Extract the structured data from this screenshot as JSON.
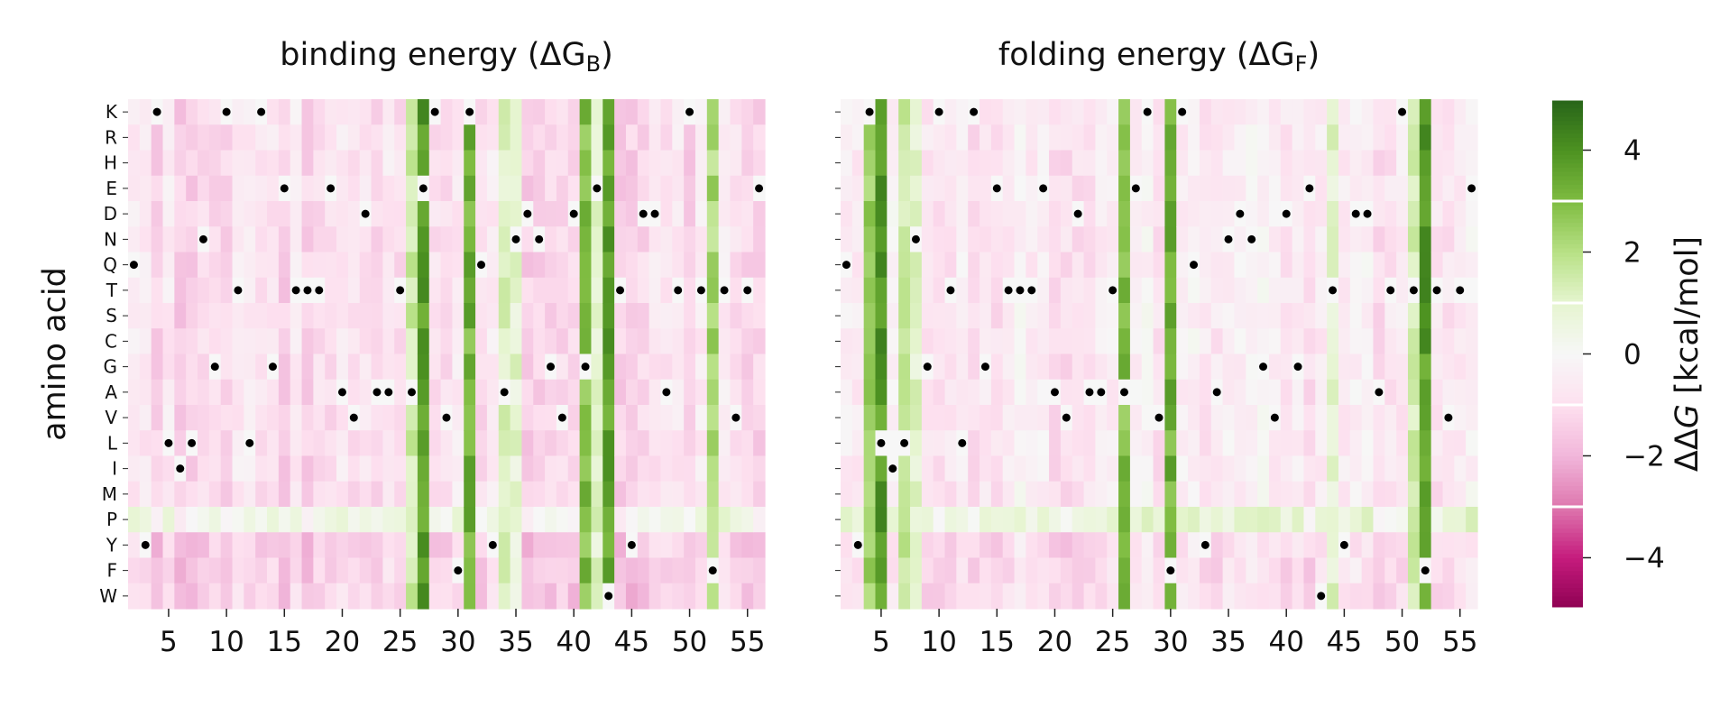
{
  "chart_data": [
    {
      "type": "heatmap",
      "title_prefix": "binding energy (ΔG",
      "title_sub": "B",
      "title_suffix": ")",
      "ylabel": "amino acid",
      "y_categories": [
        "K",
        "R",
        "H",
        "E",
        "D",
        "N",
        "Q",
        "T",
        "S",
        "C",
        "G",
        "A",
        "V",
        "L",
        "I",
        "M",
        "P",
        "Y",
        "F",
        "W"
      ],
      "x_tick_labels": [
        "5",
        "10",
        "15",
        "20",
        "25",
        "30",
        "35",
        "40",
        "45",
        "50",
        "55"
      ],
      "x_range": [
        2,
        56
      ],
      "strong_columns": [
        {
          "position": 27,
          "value": 3.8
        },
        {
          "position": 31,
          "value": 3.2
        },
        {
          "position": 41,
          "value": 3.0
        },
        {
          "position": 43,
          "value": 3.6
        },
        {
          "position": 52,
          "value": 2.2
        }
      ],
      "green_columns": [
        {
          "position": 26,
          "value": 1.5
        },
        {
          "position": 34,
          "value": 1.2
        },
        {
          "position": 35,
          "value": 0.9
        },
        {
          "position": 42,
          "value": 1.0
        }
      ],
      "typical_value": -1.0,
      "wildtype_markers": [
        {
          "position": 2,
          "aa": "Q"
        },
        {
          "position": 3,
          "aa": "Y"
        },
        {
          "position": 4,
          "aa": "K"
        },
        {
          "position": 5,
          "aa": "L"
        },
        {
          "position": 6,
          "aa": "I"
        },
        {
          "position": 7,
          "aa": "L"
        },
        {
          "position": 8,
          "aa": "N"
        },
        {
          "position": 9,
          "aa": "G"
        },
        {
          "position": 10,
          "aa": "K"
        },
        {
          "position": 11,
          "aa": "T"
        },
        {
          "position": 12,
          "aa": "L"
        },
        {
          "position": 13,
          "aa": "K"
        },
        {
          "position": 14,
          "aa": "G"
        },
        {
          "position": 15,
          "aa": "E"
        },
        {
          "position": 16,
          "aa": "T"
        },
        {
          "position": 17,
          "aa": "T"
        },
        {
          "position": 18,
          "aa": "T"
        },
        {
          "position": 19,
          "aa": "E"
        },
        {
          "position": 20,
          "aa": "A"
        },
        {
          "position": 21,
          "aa": "V"
        },
        {
          "position": 22,
          "aa": "D"
        },
        {
          "position": 23,
          "aa": "A"
        },
        {
          "position": 24,
          "aa": "A"
        },
        {
          "position": 25,
          "aa": "T"
        },
        {
          "position": 26,
          "aa": "A"
        },
        {
          "position": 27,
          "aa": "E"
        },
        {
          "position": 28,
          "aa": "K"
        },
        {
          "position": 29,
          "aa": "V"
        },
        {
          "position": 30,
          "aa": "F"
        },
        {
          "position": 31,
          "aa": "K"
        },
        {
          "position": 32,
          "aa": "Q"
        },
        {
          "position": 33,
          "aa": "Y"
        },
        {
          "position": 34,
          "aa": "A"
        },
        {
          "position": 35,
          "aa": "N"
        },
        {
          "position": 36,
          "aa": "D"
        },
        {
          "position": 37,
          "aa": "N"
        },
        {
          "position": 38,
          "aa": "G"
        },
        {
          "position": 39,
          "aa": "V"
        },
        {
          "position": 40,
          "aa": "D"
        },
        {
          "position": 41,
          "aa": "G"
        },
        {
          "position": 42,
          "aa": "E"
        },
        {
          "position": 43,
          "aa": "W"
        },
        {
          "position": 44,
          "aa": "T"
        },
        {
          "position": 45,
          "aa": "Y"
        },
        {
          "position": 46,
          "aa": "D"
        },
        {
          "position": 47,
          "aa": "D"
        },
        {
          "position": 48,
          "aa": "A"
        },
        {
          "position": 49,
          "aa": "T"
        },
        {
          "position": 50,
          "aa": "K"
        },
        {
          "position": 51,
          "aa": "T"
        },
        {
          "position": 52,
          "aa": "F"
        },
        {
          "position": 53,
          "aa": "T"
        },
        {
          "position": 54,
          "aa": "V"
        },
        {
          "position": 55,
          "aa": "T"
        },
        {
          "position": 56,
          "aa": "E"
        }
      ]
    },
    {
      "type": "heatmap",
      "title_prefix": "folding energy (ΔG",
      "title_sub": "F",
      "title_suffix": ")",
      "ylabel": "",
      "y_categories": [
        "K",
        "R",
        "H",
        "E",
        "D",
        "N",
        "Q",
        "T",
        "S",
        "C",
        "G",
        "A",
        "V",
        "L",
        "I",
        "M",
        "P",
        "Y",
        "F",
        "W"
      ],
      "x_tick_labels": [
        "5",
        "10",
        "15",
        "20",
        "25",
        "30",
        "35",
        "40",
        "45",
        "50",
        "55"
      ],
      "x_range": [
        2,
        56
      ],
      "strong_columns": [
        {
          "position": 5,
          "value": 3.8
        },
        {
          "position": 26,
          "value": 3.0
        },
        {
          "position": 30,
          "value": 3.2
        },
        {
          "position": 52,
          "value": 3.8
        }
      ],
      "green_columns": [
        {
          "position": 4,
          "value": 2.5
        },
        {
          "position": 7,
          "value": 1.6
        },
        {
          "position": 8,
          "value": 1.0
        },
        {
          "position": 44,
          "value": 1.0
        },
        {
          "position": 51,
          "value": 1.4
        }
      ],
      "typical_value": -0.6,
      "wildtype_markers": [
        {
          "position": 2,
          "aa": "Q"
        },
        {
          "position": 3,
          "aa": "Y"
        },
        {
          "position": 4,
          "aa": "K"
        },
        {
          "position": 5,
          "aa": "L"
        },
        {
          "position": 6,
          "aa": "I"
        },
        {
          "position": 7,
          "aa": "L"
        },
        {
          "position": 8,
          "aa": "N"
        },
        {
          "position": 9,
          "aa": "G"
        },
        {
          "position": 10,
          "aa": "K"
        },
        {
          "position": 11,
          "aa": "T"
        },
        {
          "position": 12,
          "aa": "L"
        },
        {
          "position": 13,
          "aa": "K"
        },
        {
          "position": 14,
          "aa": "G"
        },
        {
          "position": 15,
          "aa": "E"
        },
        {
          "position": 16,
          "aa": "T"
        },
        {
          "position": 17,
          "aa": "T"
        },
        {
          "position": 18,
          "aa": "T"
        },
        {
          "position": 19,
          "aa": "E"
        },
        {
          "position": 20,
          "aa": "A"
        },
        {
          "position": 21,
          "aa": "V"
        },
        {
          "position": 22,
          "aa": "D"
        },
        {
          "position": 23,
          "aa": "A"
        },
        {
          "position": 24,
          "aa": "A"
        },
        {
          "position": 25,
          "aa": "T"
        },
        {
          "position": 26,
          "aa": "A"
        },
        {
          "position": 27,
          "aa": "E"
        },
        {
          "position": 28,
          "aa": "K"
        },
        {
          "position": 29,
          "aa": "V"
        },
        {
          "position": 30,
          "aa": "F"
        },
        {
          "position": 31,
          "aa": "K"
        },
        {
          "position": 32,
          "aa": "Q"
        },
        {
          "position": 33,
          "aa": "Y"
        },
        {
          "position": 34,
          "aa": "A"
        },
        {
          "position": 35,
          "aa": "N"
        },
        {
          "position": 36,
          "aa": "D"
        },
        {
          "position": 37,
          "aa": "N"
        },
        {
          "position": 38,
          "aa": "G"
        },
        {
          "position": 39,
          "aa": "V"
        },
        {
          "position": 40,
          "aa": "D"
        },
        {
          "position": 41,
          "aa": "G"
        },
        {
          "position": 42,
          "aa": "E"
        },
        {
          "position": 43,
          "aa": "W"
        },
        {
          "position": 44,
          "aa": "T"
        },
        {
          "position": 45,
          "aa": "Y"
        },
        {
          "position": 46,
          "aa": "D"
        },
        {
          "position": 47,
          "aa": "D"
        },
        {
          "position": 48,
          "aa": "A"
        },
        {
          "position": 49,
          "aa": "T"
        },
        {
          "position": 50,
          "aa": "K"
        },
        {
          "position": 51,
          "aa": "T"
        },
        {
          "position": 52,
          "aa": "F"
        },
        {
          "position": 53,
          "aa": "T"
        },
        {
          "position": 54,
          "aa": "V"
        },
        {
          "position": 55,
          "aa": "T"
        },
        {
          "position": 56,
          "aa": "E"
        }
      ]
    }
  ],
  "colorbar": {
    "label_prefix": "ΔΔ",
    "label_italic": "G",
    "label_suffix": " [kcal/mol]",
    "range": [
      -5,
      5
    ],
    "ticks": [
      {
        "value": 4,
        "label": "4"
      },
      {
        "value": 2,
        "label": "2"
      },
      {
        "value": 0,
        "label": "0"
      },
      {
        "value": -2,
        "label": "−2"
      },
      {
        "value": -4,
        "label": "−4"
      }
    ],
    "colors": [
      "#8e0152",
      "#c51b7d",
      "#de77ae",
      "#f1b6da",
      "#fde0ef",
      "#f7f7f7",
      "#e6f5d0",
      "#b8e186",
      "#7fbc41",
      "#4d9221",
      "#276419"
    ]
  }
}
